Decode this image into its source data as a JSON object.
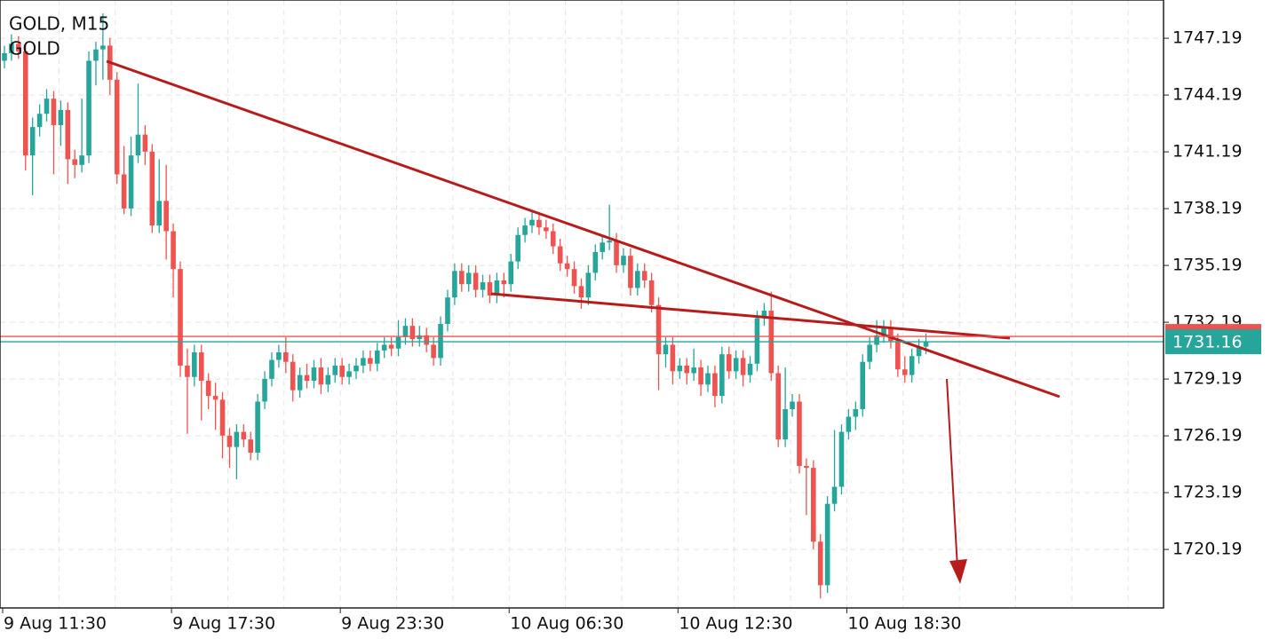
{
  "chart_data": {
    "type": "candlestick",
    "title": "GOLD, M15",
    "subtitle": "GOLD",
    "categories": [
      "9 Aug 11:30",
      null,
      null,
      null,
      null,
      null,
      null,
      null,
      null,
      null,
      null,
      null,
      null,
      null,
      null,
      null,
      null,
      null,
      null,
      null,
      null,
      null,
      null,
      null,
      "9 Aug 17:30",
      null,
      null,
      null,
      null,
      null,
      null,
      null,
      null,
      null,
      null,
      null,
      null,
      null,
      null,
      null,
      null,
      null,
      null,
      null,
      null,
      null,
      null,
      null,
      "9 Aug 23:30",
      null,
      null,
      null,
      null,
      null,
      null,
      null,
      null,
      null,
      null,
      null,
      null,
      null,
      null,
      null,
      null,
      null,
      null,
      null,
      null,
      null,
      null,
      null,
      "10 Aug 06:30",
      null,
      null,
      null,
      null,
      null,
      null,
      null,
      null,
      null,
      null,
      null,
      null,
      null,
      null,
      null,
      null,
      null,
      null,
      null,
      null,
      null,
      null,
      null,
      "10 Aug 12:30",
      null,
      null,
      null,
      null,
      null,
      null,
      null,
      null,
      null,
      null,
      null,
      null,
      null,
      null,
      null,
      null,
      null,
      null,
      null,
      null,
      null,
      null,
      null,
      "10 Aug 18:30",
      null,
      null,
      null,
      null,
      null,
      null,
      null,
      null,
      null,
      null,
      null
    ],
    "open": [
      1746.0,
      1746.4,
      1746.9,
      1746.5,
      1741.0,
      1742.5,
      1743.2,
      1744.0,
      1742.6,
      1743.4,
      1740.8,
      1740.5,
      1741.0,
      1746.0,
      1746.6,
      1746.8,
      1745.0,
      1740.0,
      1738.2,
      1741.0,
      1742.1,
      1741.2,
      1737.3,
      1738.6,
      1737.0,
      1735.0,
      1729.9,
      1729.3,
      1730.6,
      1729.1,
      1728.3,
      1728.1,
      1726.2,
      1725.6,
      1726.4,
      1726.0,
      1725.3,
      1728.0,
      1729.2,
      1730.2,
      1730.6,
      1730.1,
      1728.6,
      1729.4,
      1729.1,
      1729.8,
      1728.9,
      1729.4,
      1729.9,
      1729.3,
      1729.6,
      1729.9,
      1730.3,
      1730.0,
      1730.7,
      1731.0,
      1730.8,
      1731.4,
      1732.0,
      1731.3,
      1731.5,
      1731.0,
      1730.3,
      1732.1,
      1733.5,
      1734.9,
      1734.2,
      1734.8,
      1733.9,
      1734.3,
      1733.6,
      1734.4,
      1734.2,
      1735.4,
      1736.8,
      1737.3,
      1737.6,
      1737.2,
      1737.0,
      1736.2,
      1735.3,
      1735.0,
      1734.1,
      1733.5,
      1734.8,
      1735.9,
      1736.4,
      1736.5,
      1735.2,
      1735.7,
      1734.0,
      1734.9,
      1734.4,
      1733.1,
      1730.5,
      1731.0,
      1729.6,
      1729.9,
      1729.5,
      1729.8,
      1728.9,
      1729.5,
      1728.3,
      1730.5,
      1729.6,
      1730.3,
      1729.4,
      1730.0,
      1732.4,
      1732.8,
      1729.5,
      1726.0,
      1727.6,
      1728.0,
      1724.6,
      1724.5,
      1720.6,
      1718.3,
      1722.6,
      1723.5,
      1726.4,
      1727.2,
      1727.6,
      1730.1,
      1731.0,
      1731.5,
      1731.9,
      1731.2,
      1729.7,
      1729.4,
      1730.4,
      1730.9
    ],
    "high": [
      1746.8,
      1747.4,
      1747.3,
      1746.9,
      1743.0,
      1743.7,
      1744.5,
      1744.4,
      1743.9,
      1743.8,
      1741.3,
      1744.0,
      1746.5,
      1747.0,
      1748.5,
      1747.2,
      1745.4,
      1741.5,
      1742.0,
      1744.8,
      1742.6,
      1741.6,
      1740.8,
      1740.5,
      1737.4,
      1735.4,
      1730.8,
      1731.0,
      1731.0,
      1729.5,
      1729.0,
      1728.5,
      1726.6,
      1726.8,
      1726.8,
      1726.4,
      1728.4,
      1729.6,
      1730.6,
      1731.0,
      1731.4,
      1730.5,
      1729.8,
      1730.0,
      1730.2,
      1730.3,
      1729.8,
      1730.3,
      1730.3,
      1730.0,
      1730.3,
      1730.7,
      1730.7,
      1731.1,
      1731.4,
      1731.4,
      1732.3,
      1732.4,
      1732.4,
      1732.0,
      1731.9,
      1731.4,
      1732.5,
      1733.9,
      1735.3,
      1735.3,
      1735.2,
      1735.2,
      1734.7,
      1734.7,
      1734.8,
      1734.8,
      1735.8,
      1737.2,
      1737.7,
      1738.0,
      1738.0,
      1737.6,
      1737.4,
      1736.6,
      1735.7,
      1735.4,
      1734.5,
      1735.2,
      1736.3,
      1736.8,
      1738.4,
      1736.9,
      1736.1,
      1736.1,
      1735.3,
      1735.3,
      1734.8,
      1733.5,
      1731.4,
      1731.4,
      1730.3,
      1730.3,
      1730.8,
      1730.2,
      1729.9,
      1729.9,
      1730.9,
      1730.9,
      1730.7,
      1730.7,
      1730.4,
      1732.8,
      1733.2,
      1733.8,
      1729.9,
      1729.8,
      1728.4,
      1728.4,
      1725.0,
      1724.9,
      1721.0,
      1723.0,
      1726.5,
      1726.8,
      1727.6,
      1728.0,
      1730.5,
      1731.4,
      1732.3,
      1732.3,
      1732.3,
      1731.6,
      1730.4,
      1730.8,
      1731.3,
      1731.6
    ],
    "low": [
      1745.6,
      1746.0,
      1746.1,
      1740.2,
      1738.9,
      1742.0,
      1742.8,
      1740.0,
      1741.5,
      1739.5,
      1739.8,
      1740.1,
      1740.6,
      1744.7,
      1745.0,
      1744.2,
      1739.5,
      1737.9,
      1737.8,
      1740.6,
      1740.5,
      1736.9,
      1736.9,
      1735.5,
      1733.5,
      1729.3,
      1726.3,
      1728.8,
      1727.0,
      1727.6,
      1726.5,
      1725.0,
      1724.5,
      1723.9,
      1725.6,
      1724.9,
      1724.9,
      1727.6,
      1728.8,
      1729.8,
      1729.5,
      1728.0,
      1728.2,
      1728.7,
      1728.7,
      1728.4,
      1728.5,
      1729.0,
      1728.9,
      1728.9,
      1729.2,
      1729.5,
      1729.6,
      1729.6,
      1730.3,
      1730.4,
      1730.4,
      1731.0,
      1730.9,
      1730.9,
      1730.6,
      1729.9,
      1729.9,
      1731.7,
      1733.1,
      1733.8,
      1733.8,
      1733.5,
      1733.5,
      1733.2,
      1733.2,
      1733.5,
      1733.8,
      1735.0,
      1736.4,
      1736.9,
      1736.8,
      1736.6,
      1735.8,
      1734.9,
      1734.6,
      1733.7,
      1732.9,
      1733.1,
      1734.4,
      1735.5,
      1736.0,
      1734.8,
      1734.8,
      1733.6,
      1733.6,
      1734.0,
      1732.7,
      1728.6,
      1729.8,
      1728.9,
      1729.2,
      1728.9,
      1729.1,
      1728.3,
      1728.5,
      1727.7,
      1727.9,
      1729.2,
      1729.2,
      1728.8,
      1729.0,
      1729.6,
      1732.0,
      1729.1,
      1725.6,
      1725.6,
      1727.2,
      1724.2,
      1722.0,
      1720.2,
      1717.6,
      1717.9,
      1722.2,
      1723.1,
      1726.0,
      1726.5,
      1727.2,
      1729.7,
      1730.6,
      1731.1,
      1730.8,
      1729.3,
      1729.0,
      1729.0,
      1730.0,
      1730.5
    ],
    "close": [
      1746.4,
      1746.9,
      1746.5,
      1741.0,
      1742.5,
      1743.2,
      1744.0,
      1742.6,
      1743.4,
      1740.8,
      1740.5,
      1741.0,
      1746.0,
      1746.6,
      1746.8,
      1745.0,
      1740.0,
      1738.2,
      1741.0,
      1742.1,
      1741.2,
      1737.3,
      1738.6,
      1737.0,
      1735.0,
      1729.9,
      1729.3,
      1730.6,
      1729.1,
      1728.3,
      1728.1,
      1726.2,
      1725.6,
      1726.4,
      1726.0,
      1725.3,
      1728.0,
      1729.2,
      1730.2,
      1730.6,
      1730.1,
      1728.6,
      1729.4,
      1729.1,
      1729.8,
      1728.9,
      1729.4,
      1729.9,
      1729.3,
      1729.6,
      1729.9,
      1730.3,
      1730.0,
      1730.7,
      1731.0,
      1730.8,
      1731.4,
      1732.0,
      1731.3,
      1731.5,
      1731.0,
      1730.3,
      1732.1,
      1733.5,
      1734.9,
      1734.2,
      1734.8,
      1733.9,
      1734.3,
      1733.6,
      1734.4,
      1734.2,
      1735.4,
      1736.8,
      1737.3,
      1737.6,
      1737.2,
      1737.0,
      1736.2,
      1735.3,
      1735.0,
      1734.1,
      1733.5,
      1734.8,
      1735.9,
      1736.4,
      1736.5,
      1735.2,
      1735.7,
      1734.0,
      1734.9,
      1734.4,
      1733.1,
      1730.5,
      1731.0,
      1729.6,
      1729.9,
      1729.5,
      1729.8,
      1728.9,
      1729.5,
      1728.3,
      1730.5,
      1729.6,
      1730.3,
      1729.4,
      1730.0,
      1732.4,
      1732.8,
      1729.5,
      1726.0,
      1727.6,
      1728.0,
      1724.6,
      1724.5,
      1720.6,
      1718.3,
      1722.6,
      1723.5,
      1726.4,
      1727.2,
      1727.6,
      1730.1,
      1731.0,
      1731.5,
      1731.9,
      1731.2,
      1729.7,
      1729.4,
      1730.4,
      1730.9,
      1731.16
    ],
    "up_color": "#26a69a",
    "down_color": "#ef5350",
    "ylim": [
      1717.1,
      1749.21
    ],
    "yticks": [
      1720.19,
      1723.19,
      1726.19,
      1729.19,
      1732.19,
      1735.19,
      1738.19,
      1741.19,
      1744.19,
      1747.19
    ],
    "grid": true,
    "last_price": 1731.16,
    "ask_price": 1731.44
  }
}
